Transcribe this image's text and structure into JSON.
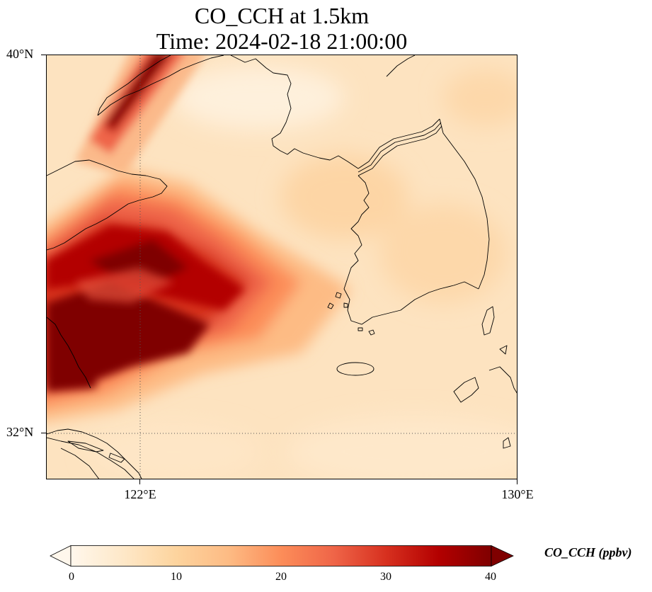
{
  "title": {
    "line1": "CO_CCH at 1.5km",
    "line2": "Time: 2024-02-18 21:00:00"
  },
  "map": {
    "lon_range": [
      121.0,
      130.0
    ],
    "lat_range": [
      31.5,
      40.0
    ],
    "gridlines": {
      "lat": [
        32
      ],
      "lon": [
        122
      ],
      "style": "dotted"
    },
    "lat_labels": [
      "40°N",
      "32°N"
    ],
    "lon_labels": [
      "122°E",
      "130°E"
    ],
    "colormap": "OrRd",
    "features": [
      "coastlines",
      "Yellow Sea",
      "Korean Peninsula",
      "Shandong Peninsula",
      "Yangtze River Delta",
      "Jeju Island"
    ]
  },
  "colorbar": {
    "label": "CO_CCH (ppbv)",
    "min": 0,
    "max": 40,
    "ticks": [
      "0",
      "10",
      "20",
      "30",
      "40"
    ],
    "extend": "both",
    "colors": [
      "#fff7ec",
      "#fee8c8",
      "#fdd49e",
      "#fdbb84",
      "#fc8d59",
      "#ef6548",
      "#d7301f",
      "#b30000",
      "#7f0000"
    ]
  }
}
